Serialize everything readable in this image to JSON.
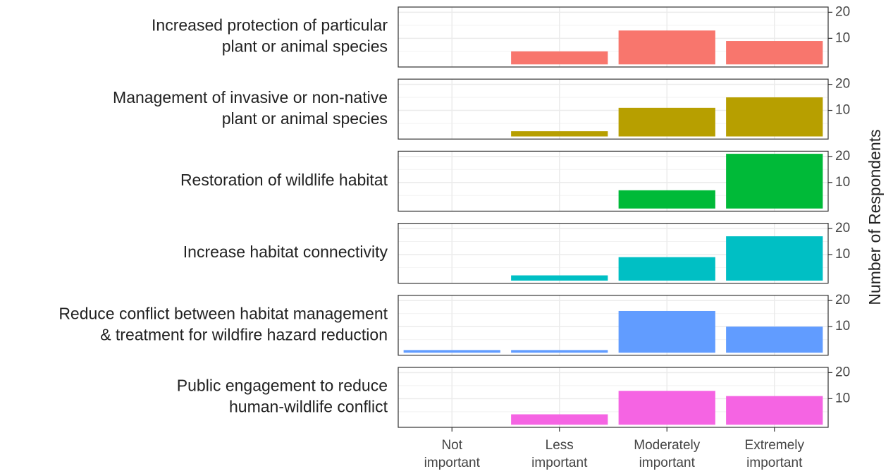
{
  "chart_data": {
    "type": "bar",
    "categories": [
      [
        "Not",
        "important"
      ],
      [
        "Less",
        "important"
      ],
      [
        "Moderately",
        "important"
      ],
      [
        "Extremely",
        "important"
      ]
    ],
    "ylabel": "Number of Respondents",
    "ylim": [
      -1,
      22
    ],
    "yticks": [
      10,
      20
    ],
    "minor_yticks": [
      5,
      15
    ],
    "grid": true,
    "facets": [
      {
        "title": [
          "Increased protection of particular",
          "plant or animal species"
        ],
        "color": "#F8766D",
        "values": [
          0,
          5,
          13,
          9
        ]
      },
      {
        "title": [
          "Management of invasive or non-native",
          "plant or animal species"
        ],
        "color": "#B79F00",
        "values": [
          0,
          2,
          11,
          15
        ]
      },
      {
        "title": [
          "Restoration of wildlife habitat"
        ],
        "color": "#00BA38",
        "values": [
          0,
          0,
          7,
          21
        ]
      },
      {
        "title": [
          "Increase habitat connectivity"
        ],
        "color": "#00BFC4",
        "values": [
          0,
          2,
          9,
          17
        ]
      },
      {
        "title": [
          "Reduce conflict between habitat management",
          "& treatment for wildfire hazard reduction"
        ],
        "color": "#619CFF",
        "values": [
          1,
          1,
          16,
          10
        ]
      },
      {
        "title": [
          "Public engagement to reduce",
          "human-wildlife conflict"
        ],
        "color": "#F564E3",
        "values": [
          0,
          4,
          13,
          11
        ]
      }
    ]
  }
}
